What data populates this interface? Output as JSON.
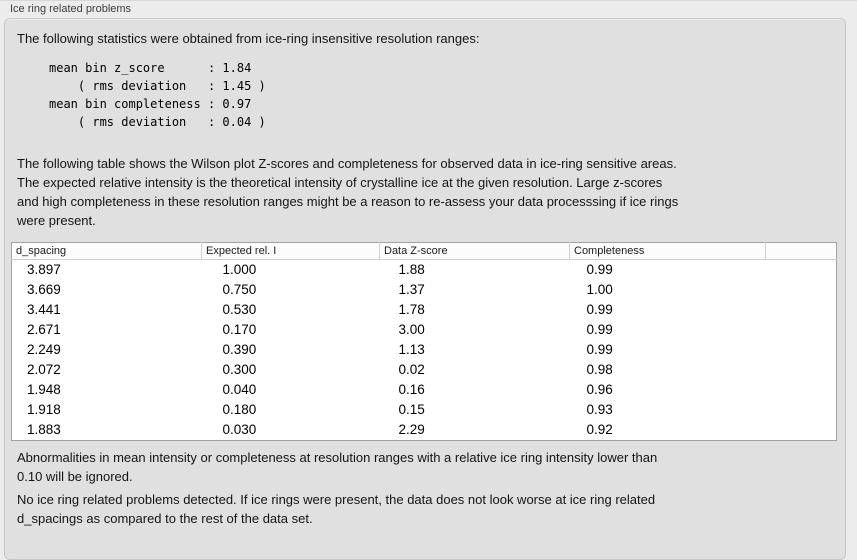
{
  "window": {
    "title": "Ice ring related problems"
  },
  "panel": {
    "intro": "The following statistics were obtained from ice-ring insensitive resolution ranges:",
    "stats_block": "mean bin z_score      : 1.84\n    ( rms deviation   : 1.45 )\nmean bin completeness : 0.97\n    ( rms deviation   : 0.04 )",
    "stats": {
      "mean_bin_z_score": "1.84",
      "z_score_rms_deviation": "1.45",
      "mean_bin_completeness": "0.97",
      "completeness_rms_deviation": "0.04"
    },
    "table_description": "The following table shows the Wilson plot Z-scores and completeness for observed data in ice-ring sensitive areas.\nThe expected relative intensity is the theoretical intensity of crystalline ice at the given resolution. Large z-scores\nand high completeness in these resolution ranges might be a reason to re-assess your data processsing if ice rings\nwere present.",
    "table": {
      "columns": [
        "d_spacing",
        "Expected rel. I",
        "Data Z-score",
        "Completeness"
      ],
      "rows": [
        [
          "3.897",
          "1.000",
          "1.88",
          "0.99"
        ],
        [
          "3.669",
          "0.750",
          "1.37",
          "1.00"
        ],
        [
          "3.441",
          "0.530",
          "1.78",
          "0.99"
        ],
        [
          "2.671",
          "0.170",
          "3.00",
          "0.99"
        ],
        [
          "2.249",
          "0.390",
          "1.13",
          "0.99"
        ],
        [
          "2.072",
          "0.300",
          "0.02",
          "0.98"
        ],
        [
          "1.948",
          "0.040",
          "0.16",
          "0.96"
        ],
        [
          "1.918",
          "0.180",
          "0.15",
          "0.93"
        ],
        [
          "1.883",
          "0.030",
          "2.29",
          "0.92"
        ]
      ]
    },
    "ignore_note": "Abnormalities in mean intensity or completeness at resolution ranges with a relative ice ring intensity lower than\n0.10 will be ignored.",
    "conclusion": "No ice ring related problems detected. If ice rings were present, the data does not look worse at ice ring related\nd_spacings as compared to the rest of the data set.",
    "colors": {
      "page_background": "#ececec",
      "panel_background": "#e0e0e0",
      "panel_border": "#c7c7c7",
      "table_background": "#ffffff",
      "table_border": "#a2a2a2",
      "text": "#141414"
    }
  }
}
